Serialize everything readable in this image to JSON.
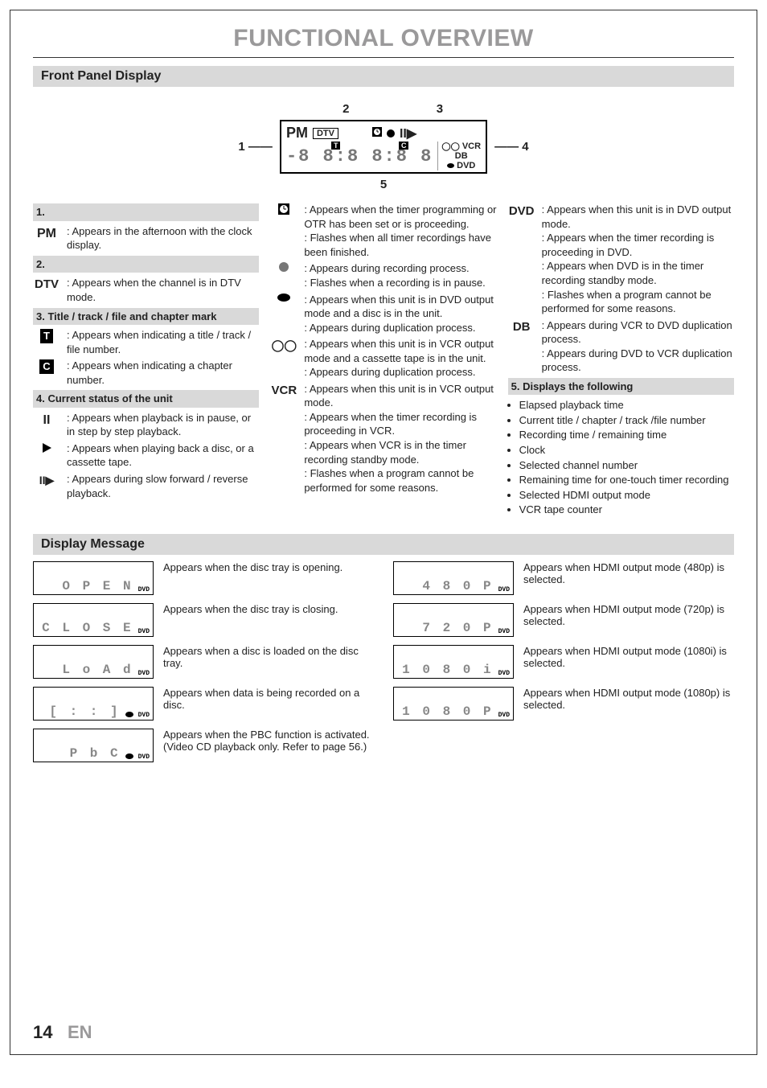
{
  "page": {
    "title": "FUNCTIONAL OVERVIEW",
    "number": "14",
    "lang": "EN",
    "title_color": "#9a999a",
    "heading_bg": "#d9d9d9"
  },
  "front_panel": {
    "heading": "Front Panel Display",
    "diagram": {
      "callouts": {
        "c1": "1",
        "c2": "2",
        "c3": "3",
        "c4": "4",
        "c5": "5"
      },
      "labels": {
        "pm": "PM",
        "dtv": "DTV",
        "vcr": "VCR",
        "db": "DB",
        "dvd": "DVD",
        "t": "T",
        "c": "C"
      },
      "segment_sample": "-8 8:8 8:8 8"
    }
  },
  "col1": {
    "s1": {
      "head": "1.",
      "icon": "PM",
      "text": "Appears in the afternoon with the clock display."
    },
    "s2": {
      "head": "2.",
      "icon": "DTV",
      "text": "Appears when the channel is in DTV mode."
    },
    "s3": {
      "head": "3. Title / track / file and chapter mark",
      "t_text": "Appears when indicating a title / track / file number.",
      "c_text": "Appears when indicating a chapter number."
    },
    "s4": {
      "head": "4. Current status of the unit",
      "pause": "Appears when playback is in pause, or in step by step playback.",
      "play": "Appears when playing back a disc, or a cassette tape.",
      "slow": "Appears during slow forward / reverse playback."
    }
  },
  "col2": {
    "timer1": "Appears when the timer programming or OTR has been set or is proceeding.",
    "timer2": "Flashes when all timer recordings have been finished.",
    "rec1": "Appears during recording process.",
    "rec2": "Flashes when a recording is in pause.",
    "disc1": "Appears when this unit is in DVD output mode and a disc is in the unit.",
    "disc2": "Appears during duplication process.",
    "tape1": "Appears when this unit is in VCR output mode and a cassette tape is in the unit.",
    "tape2": "Appears during duplication process.",
    "vcr1": "Appears when this unit is in VCR output mode.",
    "vcr2": "Appears when the timer recording is proceeding in VCR.",
    "vcr3": "Appears when VCR is in the timer recording standby mode.",
    "vcr4": "Flashes when a program cannot be performed for some reasons.",
    "vcr_label": "VCR"
  },
  "col3": {
    "dvd_label": "DVD",
    "dvd1": "Appears when this unit is in DVD output mode.",
    "dvd2": "Appears when the timer recording is proceeding in DVD.",
    "dvd3": "Appears when DVD is in the timer recording standby mode.",
    "dvd4": "Flashes when a program cannot be performed for some reasons.",
    "db_label": "DB",
    "db1": "Appears during VCR to DVD duplication process.",
    "db2": "Appears during DVD to VCR duplication process.",
    "s5head": "5. Displays the following",
    "bullets": [
      "Elapsed playback time",
      "Current title / chapter / track /file number",
      "Recording time / remaining time",
      "Clock",
      "Selected channel number",
      "Remaining time for one-touch timer recording",
      "Selected HDMI output mode",
      "VCR tape counter"
    ]
  },
  "display_message": {
    "heading": "Display Message",
    "left": [
      {
        "lcd": "O P E N",
        "dvd": "DVD",
        "disc": false,
        "text": "Appears when the disc tray is opening."
      },
      {
        "lcd": "C L O S E",
        "dvd": "DVD",
        "disc": false,
        "text": "Appears when the disc tray is closing."
      },
      {
        "lcd": "L o A d",
        "dvd": "DVD",
        "disc": false,
        "text": "Appears when a disc is loaded on the disc tray."
      },
      {
        "lcd": "[ : : ]",
        "dvd": "DVD",
        "disc": true,
        "text": "Appears when data is being recorded on a disc."
      },
      {
        "lcd": "P b C",
        "dvd": "DVD",
        "disc": true,
        "text": "Appears when the PBC function is activated. (Video CD playback only. Refer to page 56.)"
      }
    ],
    "right": [
      {
        "lcd": "4 8 0   P",
        "dvd": "DVD",
        "disc": false,
        "text": "Appears when HDMI output mode (480p) is selected."
      },
      {
        "lcd": "7 2 0   P",
        "dvd": "DVD",
        "disc": false,
        "text": "Appears when HDMI output mode (720p) is selected."
      },
      {
        "lcd": "1 0 8 0   i",
        "dvd": "DVD",
        "disc": false,
        "text": "Appears when HDMI output mode (1080i) is selected."
      },
      {
        "lcd": "1 0 8 0   P",
        "dvd": "DVD",
        "disc": false,
        "text": "Appears when HDMI output mode (1080p) is selected."
      }
    ]
  }
}
